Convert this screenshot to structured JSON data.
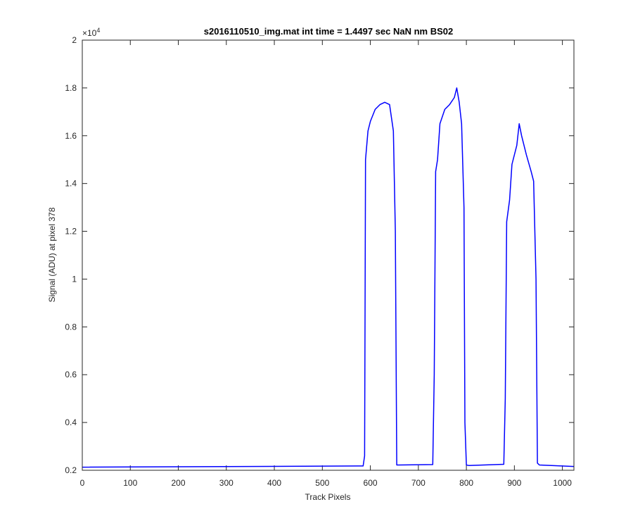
{
  "chart_data": {
    "type": "line",
    "title": "s2016110510_img.mat int time = 1.4497 sec  NaN nm BS02",
    "xlabel": "Track Pixels",
    "ylabel": "Signal (ADU) at pixel 378",
    "exponent_label": "×10",
    "exponent_power": "4",
    "xlim": [
      0,
      1024
    ],
    "ylim": [
      0.2,
      2.0
    ],
    "xticks": [
      "0",
      "100",
      "200",
      "300",
      "400",
      "500",
      "600",
      "700",
      "800",
      "900",
      "1000"
    ],
    "yticks": [
      "0.2",
      "0.4",
      "0.6",
      "0.8",
      "1",
      "1.2",
      "1.4",
      "1.6",
      "1.8",
      "2"
    ],
    "grid": false,
    "line_color": "#0000ff",
    "series": [
      {
        "x": [
          0,
          585,
          588,
          590,
          595,
          600,
          610,
          620,
          630,
          640,
          648,
          652,
          655,
          660,
          730,
          733,
          736,
          740,
          745,
          755,
          765,
          775,
          780,
          785,
          790,
          795,
          797,
          800,
          805,
          878,
          881,
          884,
          890,
          895,
          905,
          910,
          915,
          925,
          935,
          940,
          945,
          948,
          952,
          1024
        ],
        "y": [
          0.213,
          0.218,
          0.26,
          1.5,
          1.62,
          1.66,
          1.71,
          1.73,
          1.74,
          1.73,
          1.62,
          1.2,
          0.222,
          0.222,
          0.224,
          0.6,
          1.45,
          1.5,
          1.65,
          1.71,
          1.73,
          1.76,
          1.8,
          1.74,
          1.65,
          1.3,
          0.4,
          0.222,
          0.22,
          0.225,
          0.5,
          1.24,
          1.33,
          1.48,
          1.56,
          1.65,
          1.6,
          1.52,
          1.45,
          1.41,
          1.0,
          0.23,
          0.222,
          0.216
        ]
      }
    ]
  }
}
